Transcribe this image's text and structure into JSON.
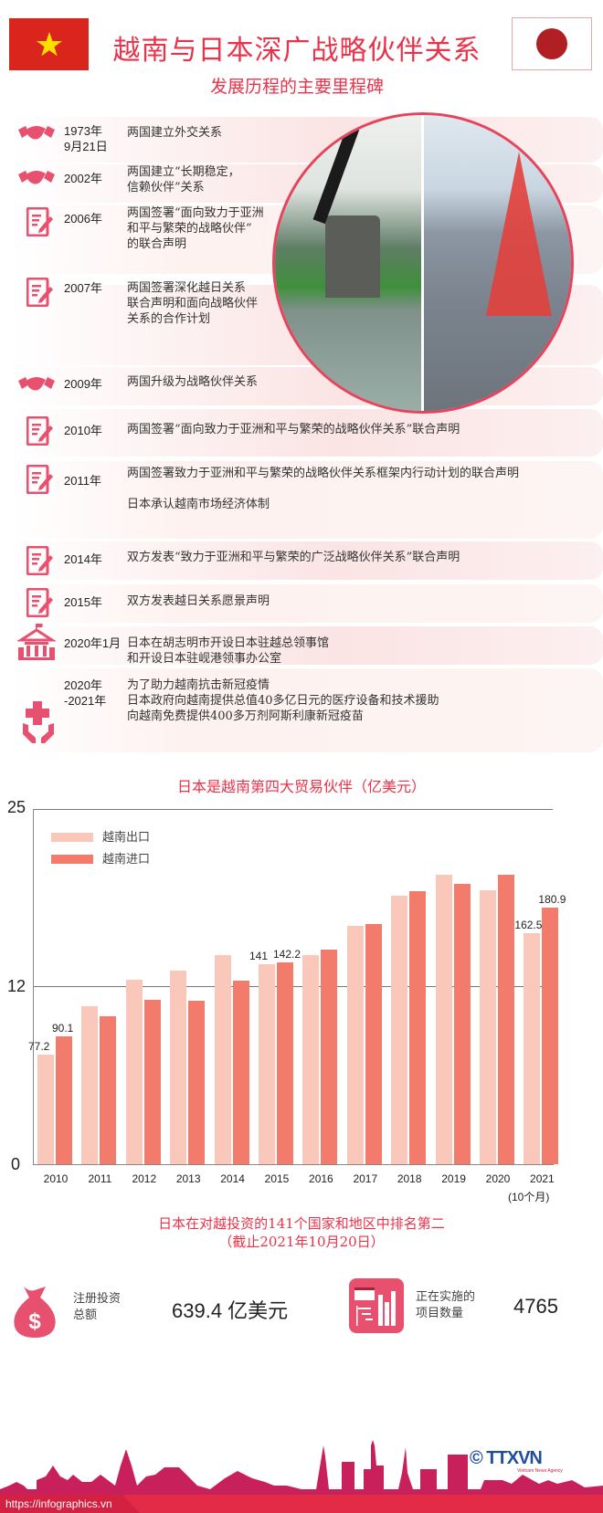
{
  "header": {
    "title": "越南与日本深广战略伙伴关系",
    "subtitle": "发展历程的主要里程碑",
    "flag_left": "vietnam-flag",
    "flag_right": "japan-flag"
  },
  "timeline": [
    {
      "year": "1973年\n9月21日",
      "desc": "两国建立外交关系",
      "icon": "handshake-icon"
    },
    {
      "year": "2002年",
      "desc": "两国建立“长期稳定，\n信赖伙伴”关系",
      "icon": "handshake-icon"
    },
    {
      "year": "2006年",
      "desc": "两国签署“面向致力于亚洲\n和平与繁荣的战略伙伴”\n的联合声明",
      "icon": "document-sign-icon"
    },
    {
      "year": "2007年",
      "desc": "两国签署深化越日关系\n联合声明和面向战略伙伴\n关系的合作计划",
      "icon": "document-sign-icon"
    },
    {
      "year": "2009年",
      "desc": "两国升级为战略伙伴关系",
      "icon": "handshake-icon"
    },
    {
      "year": "2010年",
      "desc": "两国签署“面向致力于亚洲和平与繁荣的战略伙伴关系”联合声明",
      "icon": "document-sign-icon"
    },
    {
      "year": "2011年",
      "desc": "两国签署致力于亚洲和平与繁荣的战略伙伴关系框架内行动计划的联合声明\n\n日本承认越南市场经济体制",
      "icon": "document-sign-icon"
    },
    {
      "year": "2014年",
      "desc": "双方发表“致力于亚洲和平与繁荣的广泛战略伙伴关系”联合声明",
      "icon": "document-sign-icon"
    },
    {
      "year": "2015年",
      "desc": "双方发表越日关系愿景声明",
      "icon": "document-sign-icon"
    },
    {
      "year": "2020年1月",
      "desc": "日本在胡志明市开设日本驻越总领事馆\n和开设日本驻岘港领事办公室",
      "icon": "consulate-building-icon"
    },
    {
      "year": "2020年\n-2021年",
      "desc": "为了助力越南抗击新冠疫情\n日本政府向越南提供总值40多亿日元的医疗设备和技术援助\n向越南免费提供400多万剂阿斯利康新冠疫苗",
      "icon": "medical-care-icon"
    }
  ],
  "chart_data": {
    "type": "bar",
    "title": "日本是越南第四大贸易伙伴（亿美元）",
    "xlabel": "",
    "ylabel": "",
    "ylim": [
      0,
      25
    ],
    "y_ticks": [
      "25",
      "12",
      "0"
    ],
    "categories": [
      "2010",
      "2011",
      "2012",
      "2013",
      "2014",
      "2015",
      "2016",
      "2017",
      "2018",
      "2019",
      "2020",
      "2021"
    ],
    "category_note": "(10个月)",
    "legend_position": "top-left",
    "grid": "horizontal at 12 and 25",
    "series": [
      {
        "name": "越南出口",
        "color": "#f9c8ba",
        "values": [
          77.2,
          111,
          130,
          136,
          147,
          141,
          147,
          168,
          189,
          204,
          193,
          162.5
        ]
      },
      {
        "name": "越南进口",
        "color": "#f37b6b",
        "values": [
          90.1,
          104,
          116,
          115,
          129,
          142.2,
          151,
          169,
          192,
          197,
          204,
          180.9
        ]
      }
    ],
    "data_labels": [
      {
        "category": "2010",
        "series": "越南出口",
        "label": "77.2"
      },
      {
        "category": "2010",
        "series": "越南进口",
        "label": "90.1"
      },
      {
        "category": "2015",
        "series": "越南出口",
        "label": "141"
      },
      {
        "category": "2015",
        "series": "越南进口",
        "label": "142.2"
      },
      {
        "category": "2021",
        "series": "越南出口",
        "label": "162.5"
      },
      {
        "category": "2021",
        "series": "越南进口",
        "label": "180.9"
      }
    ]
  },
  "investment": {
    "title": "日本在对越投资的141个国家和地区中排名第二\n（截止2021年10月20日）",
    "registered_label": "注册投资\n总额",
    "registered_value": "639.4 亿美元",
    "projects_label": "正在实施的\n项目数量",
    "projects_value": "4765"
  },
  "footer": {
    "url": "https://infographics.vn",
    "logo": "© TTXVN",
    "logo_sub": "Vietnam News Agency"
  }
}
